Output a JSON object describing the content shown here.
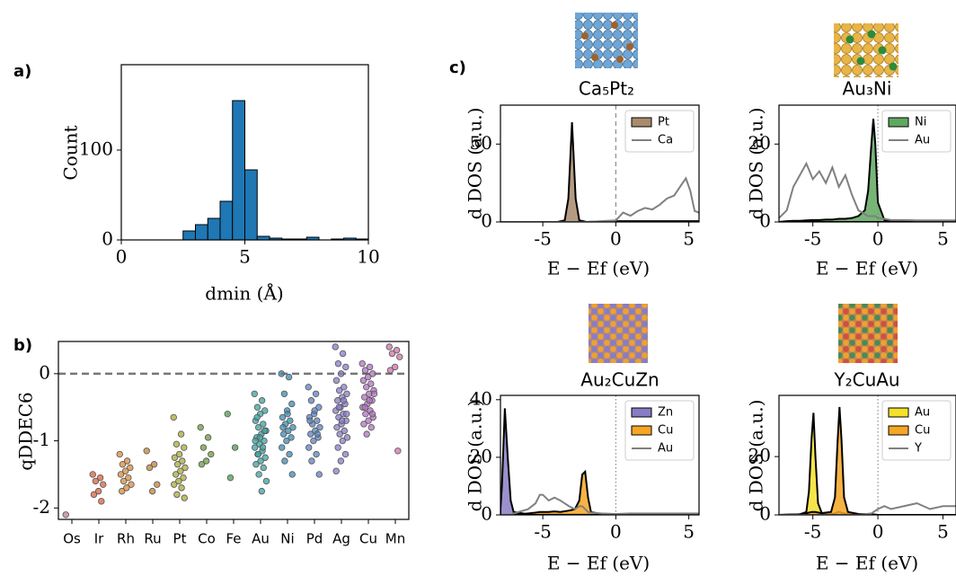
{
  "chart_data": [
    {
      "type": "histogram",
      "panel_label": "a)",
      "xlabel": "dmin (Å)",
      "ylabel": "Count",
      "color": "#1f77b4",
      "bins": [
        2.5,
        3,
        3.5,
        4,
        4.5,
        5,
        5.5,
        6,
        6.5,
        7,
        7.5,
        8,
        8.5,
        9,
        9.5,
        10
      ],
      "values": [
        10,
        17,
        24,
        43,
        155,
        78,
        4,
        2,
        1,
        1,
        3,
        0,
        1,
        2,
        1
      ],
      "xlim": [
        0,
        10
      ],
      "ylim": [
        0,
        195
      ],
      "xticks": [
        0,
        5,
        10
      ],
      "yticks": [
        0,
        100
      ]
    },
    {
      "type": "strip",
      "panel_label": "b)",
      "ylabel": "qDDEC6",
      "categories": [
        "Os",
        "Ir",
        "Rh",
        "Ru",
        "Pt",
        "Co",
        "Fe",
        "Au",
        "Ni",
        "Pd",
        "Ag",
        "Cu",
        "Mn"
      ],
      "colors": [
        "#c07a9a",
        "#d9603f",
        "#d98a3a",
        "#c0803a",
        "#a8a83a",
        "#6a9a3a",
        "#4a9a50",
        "#3aa0a0",
        "#3a8ab0",
        "#5a80c0",
        "#8a7ac8",
        "#b070c0",
        "#d070a8"
      ],
      "values": [
        [
          -2.1
        ],
        [
          -1.5,
          -1.55,
          -1.6,
          -1.65,
          -1.75,
          -1.8,
          -1.9
        ],
        [
          -1.2,
          -1.3,
          -1.35,
          -1.4,
          -1.45,
          -1.5,
          -1.55,
          -1.6,
          -1.65,
          -1.7,
          -1.75
        ],
        [
          -1.15,
          -1.35,
          -1.4,
          -1.65,
          -1.75
        ],
        [
          -0.65,
          -0.9,
          -1.05,
          -1.1,
          -1.2,
          -1.25,
          -1.3,
          -1.35,
          -1.4,
          -1.45,
          -1.5,
          -1.55,
          -1.6,
          -1.65,
          -1.7,
          -1.8,
          -1.85
        ],
        [
          -0.8,
          -0.95,
          -1.1,
          -1.2,
          -1.3,
          -1.35
        ],
        [
          -0.6,
          -1.1,
          -1.55
        ],
        [
          -0.3,
          -0.4,
          -0.5,
          -0.55,
          -0.6,
          -0.7,
          -0.75,
          -0.8,
          -0.85,
          -0.9,
          -0.95,
          -1.0,
          -1.05,
          -1.1,
          -1.15,
          -1.2,
          -1.25,
          -1.3,
          -1.35,
          -1.4,
          -1.5,
          -1.6,
          -1.75,
          -0.65,
          -0.85,
          -0.95,
          -1.0,
          -1.1,
          -1.2
        ],
        [
          0,
          -0.05,
          -0.3,
          -0.45,
          -0.55,
          -0.65,
          -0.7,
          -0.75,
          -0.8,
          -0.85,
          -0.9,
          -0.95,
          -1.0,
          -1.1,
          -1.2,
          -1.3,
          -1.5,
          -0.6,
          -0.8
        ],
        [
          -0.2,
          -0.3,
          -0.4,
          -0.5,
          -0.6,
          -0.65,
          -0.7,
          -0.75,
          -0.8,
          -0.85,
          -0.9,
          -0.95,
          -1.0,
          -1.1,
          -1.2,
          -1.3,
          -1.5,
          -0.55,
          -0.7,
          -0.9
        ],
        [
          0.4,
          0.3,
          0.15,
          0.1,
          0,
          -0.1,
          -0.2,
          -0.25,
          -0.3,
          -0.35,
          -0.4,
          -0.45,
          -0.5,
          -0.55,
          -0.6,
          -0.65,
          -0.7,
          -0.75,
          -0.8,
          -0.85,
          -0.9,
          -0.95,
          -1.0,
          -1.1,
          -1.2,
          -1.3,
          -1.45,
          -0.4,
          -0.5,
          -0.6,
          -0.7
        ],
        [
          0.15,
          0.1,
          0.05,
          0,
          -0.05,
          -0.1,
          -0.15,
          -0.2,
          -0.25,
          -0.3,
          -0.35,
          -0.4,
          -0.45,
          -0.5,
          -0.55,
          -0.6,
          -0.65,
          -0.7,
          -0.75,
          -0.8,
          -0.9,
          -0.3,
          -0.4,
          -0.5,
          -0.6
        ],
        [
          0.4,
          0.35,
          0.3,
          0.25,
          0.1,
          0.05,
          -1.15
        ]
      ],
      "ylim": [
        -2.17,
        0.48
      ],
      "yticks": [
        -2,
        -1,
        0
      ],
      "hline": 0,
      "hline_style": "dashed"
    },
    {
      "type": "line",
      "panel_label": "c)",
      "title": "Ca₅Pt₂",
      "xlabel": "E − Ef (eV)",
      "ylabel": "d DOS (a.u.)",
      "x": [
        -8,
        -4,
        -3.5,
        -3.25,
        -3,
        -2.75,
        -2.5,
        -2,
        0,
        0.5,
        1,
        1.5,
        2,
        2.5,
        3,
        3.5,
        4,
        4.5,
        4.8,
        5.1,
        5.4,
        5.7
      ],
      "series": [
        {
          "name": "Pt",
          "color": "#a88a6c",
          "fill": true,
          "values": [
            0,
            0,
            1,
            15,
            64,
            15,
            1,
            0,
            0.5,
            0.5,
            0.5,
            0.5,
            0.5,
            0.5,
            0.5,
            0.5,
            0.5,
            0.5,
            0.5,
            0.5,
            0.5,
            0.5
          ]
        },
        {
          "name": "Ca",
          "color": "#808080",
          "fill": false,
          "values": [
            0,
            0,
            0,
            0,
            0,
            0,
            0,
            0,
            1,
            6,
            4,
            7,
            9,
            8,
            11,
            15,
            17,
            24,
            28,
            20,
            7,
            6
          ]
        }
      ],
      "xlim": [
        -7.9,
        5.7
      ],
      "ylim": [
        0,
        75
      ],
      "xticks": [
        -5,
        0,
        5
      ],
      "yticks": [
        0,
        50
      ],
      "vline": 0,
      "vline_style": "dashed",
      "legend": "upper right"
    },
    {
      "type": "line",
      "title": "Au₃Ni",
      "xlabel": "E − Ef (eV)",
      "ylabel": "d DOS (a.u.)",
      "x": [
        -7.6,
        -7,
        -6.5,
        -6,
        -5.5,
        -5,
        -4.5,
        -4,
        -3.5,
        -3,
        -2.5,
        -2,
        -1.5,
        -1,
        -0.75,
        -0.5,
        -0.35,
        -0.2,
        0,
        0.5,
        1,
        2,
        3,
        4,
        5,
        6
      ],
      "series": [
        {
          "name": "Ni",
          "color": "#5fa85f",
          "fill": true,
          "values": [
            0,
            0.2,
            0.3,
            0.3,
            0.4,
            0.5,
            0.5,
            0.6,
            0.6,
            0.8,
            0.8,
            1,
            1.5,
            3,
            8,
            20,
            26.5,
            20,
            5,
            0.5,
            0.2,
            0.1,
            0.1,
            0.1,
            0.1,
            0.1
          ]
        },
        {
          "name": "Au",
          "color": "#808080",
          "fill": false,
          "values": [
            1,
            3,
            9,
            12,
            15,
            11,
            13,
            10,
            14,
            9,
            12,
            7,
            3,
            2,
            1.5,
            1.5,
            1.5,
            1.5,
            1,
            0.8,
            0.5,
            0.5,
            0.4,
            0.4,
            0.4,
            0.4
          ]
        }
      ],
      "xlim": [
        -7.6,
        6
      ],
      "ylim": [
        0,
        30
      ],
      "xticks": [
        -5,
        0,
        5
      ],
      "yticks": [
        0,
        20
      ],
      "vline": 0,
      "vline_style": "dotted",
      "legend": "upper right"
    },
    {
      "type": "line",
      "title": "Au₂CuZn",
      "xlabel": "E − Ef (eV)",
      "ylabel": "d DOS (a.u.)",
      "x": [
        -7.9,
        -7.8,
        -7.6,
        -7.4,
        -7.2,
        -7,
        -6,
        -5.5,
        -5.2,
        -5,
        -4.6,
        -4.2,
        -3.8,
        -3.2,
        -2.8,
        -2.5,
        -2.3,
        -2.1,
        -1.9,
        -1.7,
        -1,
        0,
        1,
        3,
        5,
        5.7
      ],
      "series": [
        {
          "name": "Zn",
          "color": "#8a7cc4",
          "fill": true,
          "values": [
            2,
            10,
            37,
            20,
            5,
            1,
            0.2,
            0.2,
            0.2,
            0.2,
            0.2,
            0.2,
            0.2,
            0.2,
            0.2,
            0.2,
            0.2,
            0.2,
            0.2,
            0.2,
            0.1,
            0,
            0,
            0,
            0,
            0
          ]
        },
        {
          "name": "Cu",
          "color": "#f5a623",
          "fill": true,
          "values": [
            0,
            0,
            0,
            0,
            0,
            0,
            0.5,
            0.8,
            1,
            1,
            1,
            1.2,
            1,
            1.5,
            2,
            5,
            14,
            15,
            6,
            1,
            0.3,
            0.2,
            0.2,
            0.1,
            0.1,
            0.1
          ]
        },
        {
          "name": "Au",
          "color": "#808080",
          "fill": false,
          "values": [
            0,
            0,
            0,
            0,
            0,
            0.5,
            2,
            4,
            7,
            7,
            5,
            6,
            5,
            3,
            2,
            3,
            3,
            2,
            1,
            0.8,
            0.5,
            0.3,
            0.5,
            0.5,
            0.5,
            0.5
          ]
        }
      ],
      "xlim": [
        -7.9,
        5.7
      ],
      "ylim": [
        0,
        41.5
      ],
      "xticks": [
        -5,
        0,
        5
      ],
      "yticks": [
        0,
        20,
        40
      ],
      "vline": 0,
      "vline_style": "dotted",
      "legend": "upper right"
    },
    {
      "type": "line",
      "title": "Y₂CuAu",
      "xlabel": "E − Ef (eV)",
      "ylabel": "d DOS (a.u.)",
      "x": [
        -7.6,
        -6,
        -5.5,
        -5.3,
        -5.1,
        -4.95,
        -4.8,
        -4.6,
        -4.3,
        -3.6,
        -3.3,
        -3.1,
        -2.95,
        -2.8,
        -2.6,
        -2.3,
        -1.5,
        -0.5,
        0,
        0.5,
        1,
        2,
        3,
        4,
        5,
        6
      ],
      "series": [
        {
          "name": "Au",
          "color": "#f5e12a",
          "fill": true,
          "values": [
            0,
            0.2,
            1,
            8,
            26,
            35,
            20,
            4,
            0.5,
            0.3,
            0.5,
            1,
            1,
            0.8,
            0.5,
            0.3,
            0.2,
            0.2,
            0,
            0,
            0,
            0,
            0,
            0,
            0,
            0
          ]
        },
        {
          "name": "Cu",
          "color": "#f5a623",
          "fill": true,
          "values": [
            0,
            0.2,
            0.5,
            0.8,
            1,
            1,
            1,
            0.8,
            0.6,
            1,
            6,
            25,
            37,
            26,
            6,
            1,
            0.3,
            0.2,
            0,
            0,
            0,
            0,
            0,
            0,
            0,
            0
          ]
        },
        {
          "name": "Y",
          "color": "#808080",
          "fill": false,
          "values": [
            0,
            0,
            0,
            0,
            0,
            0,
            0,
            0,
            0,
            0,
            0,
            0,
            0,
            0,
            0,
            0,
            0,
            0.5,
            2,
            3,
            2,
            3,
            4,
            2,
            3,
            3
          ]
        }
      ],
      "xlim": [
        -7.6,
        6
      ],
      "ylim": [
        0,
        41
      ],
      "xticks": [
        -5,
        0,
        5
      ],
      "yticks": [
        0,
        20
      ],
      "vline": 0,
      "vline_style": "dotted",
      "legend": "upper right"
    }
  ]
}
